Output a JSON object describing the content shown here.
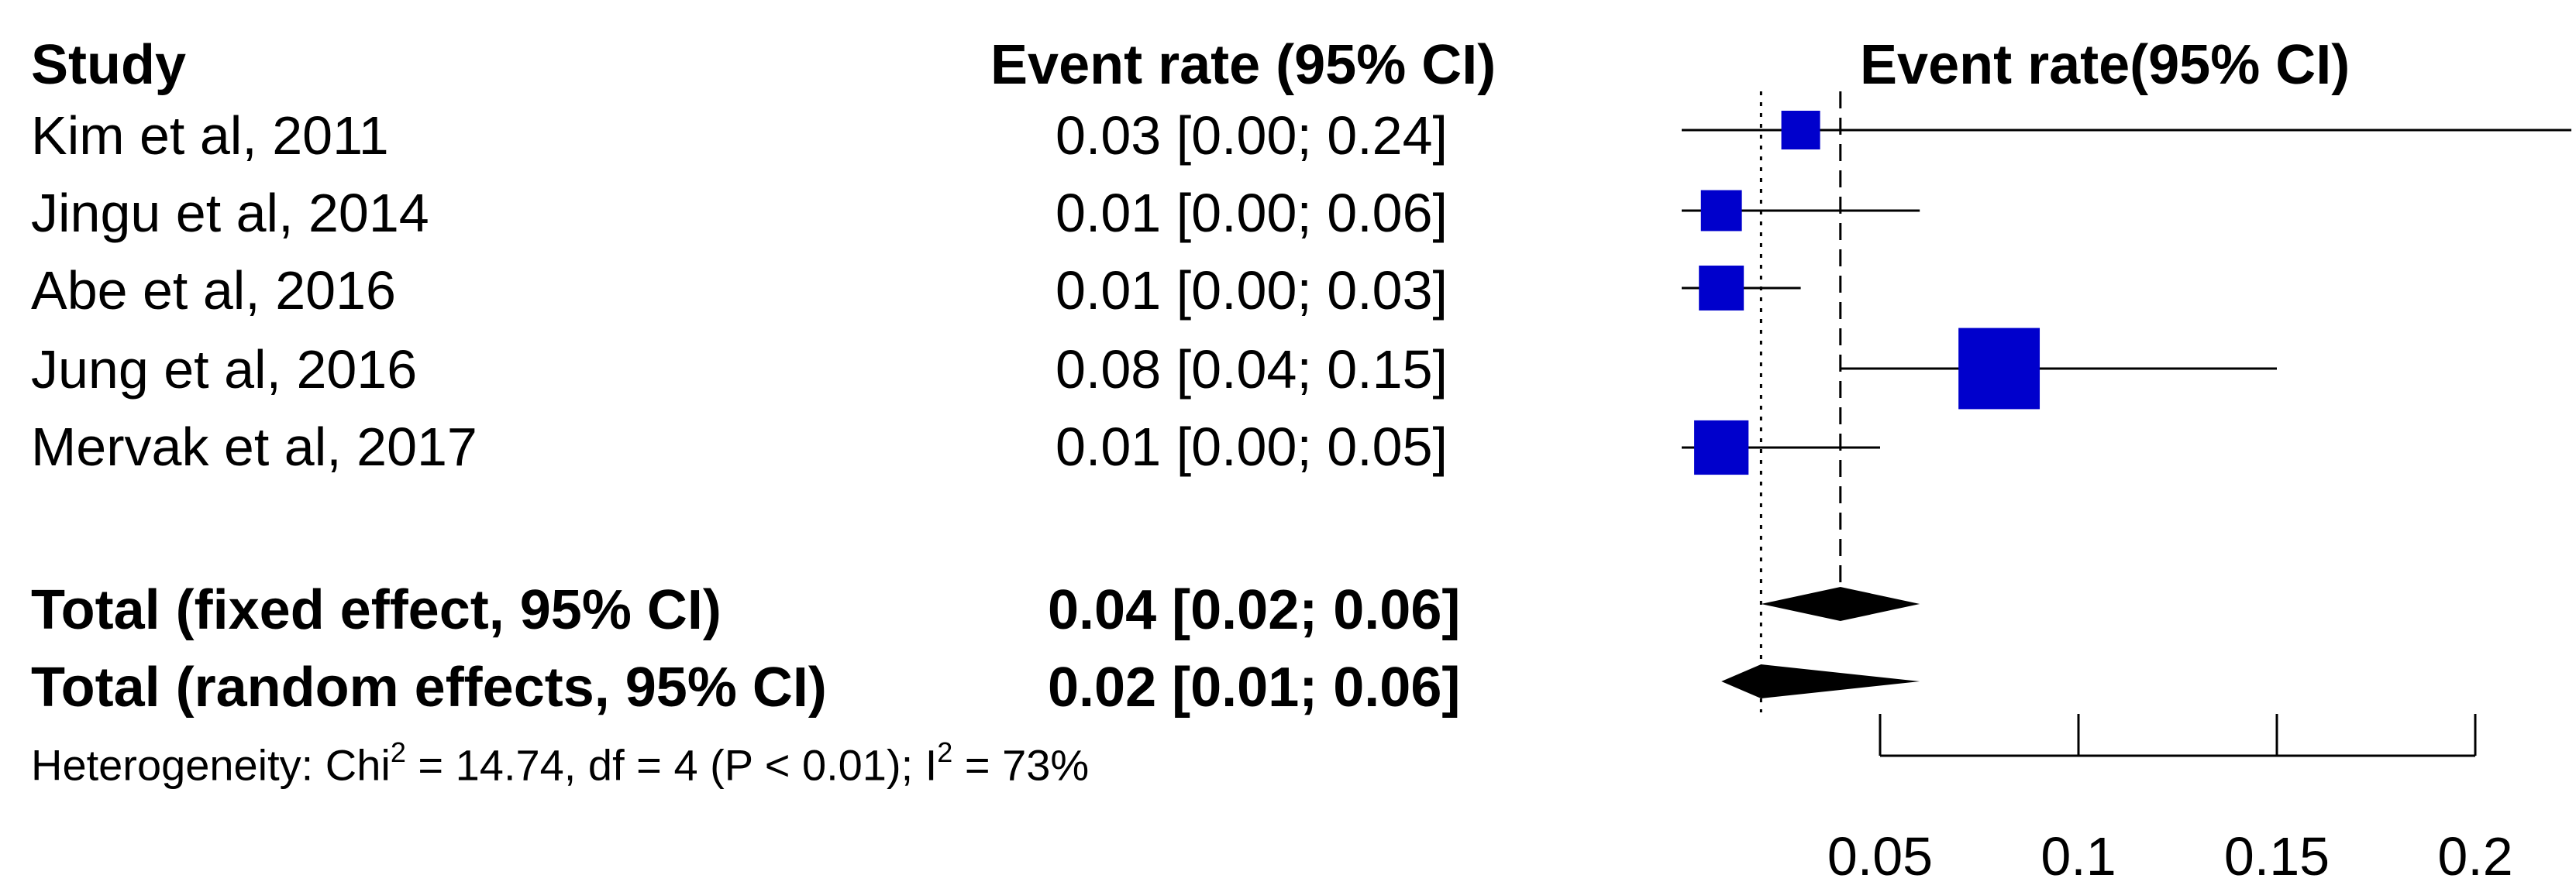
{
  "headers": {
    "study": "Study",
    "estimate": "Event rate (95% CI)",
    "plot": "Event rate(95% CI)"
  },
  "studies": [
    {
      "label": "Kim et al, 2011",
      "ci_text": "0.03 [0.00; 0.24]"
    },
    {
      "label": "Jingu et al, 2014",
      "ci_text": "0.01 [0.00; 0.06]"
    },
    {
      "label": "Abe et al, 2016",
      "ci_text": "0.01 [0.00; 0.03]"
    },
    {
      "label": "Jung et al, 2016",
      "ci_text": "0.08 [0.04; 0.15]"
    },
    {
      "label": "Mervak et al, 2017",
      "ci_text": "0.01 [0.00; 0.05]"
    }
  ],
  "totals": [
    {
      "label": "Total (fixed effect, 95% CI)",
      "ci_text": "0.04 [0.02; 0.06]"
    },
    {
      "label": "Total (random effects, 95% CI)",
      "ci_text": "0.02 [0.01; 0.06]"
    }
  ],
  "heterogeneity": {
    "part1": "Heterogeneity: Chi",
    "sup1": "2",
    "part2": " = 14.74, df = 4 (P < 0.01); I",
    "sup2": "2",
    "part3": " = 73%"
  },
  "colors": {
    "square": "#0000cc",
    "diamond": "#000000",
    "line": "#000000"
  },
  "chart_data": {
    "type": "forest",
    "title": "Event rate(95% CI)",
    "xlim": [
      0,
      0.22
    ],
    "xticks": [
      0.05,
      0.1,
      0.15,
      0.2
    ],
    "xtick_labels": [
      "0.05",
      "0.1",
      "0.15",
      "0.2"
    ],
    "studies": [
      {
        "name": "Kim et al, 2011",
        "estimate": 0.03,
        "lower": 0.0,
        "upper": 0.24,
        "weight": 1
      },
      {
        "name": "Jingu et al, 2014",
        "estimate": 0.01,
        "lower": 0.0,
        "upper": 0.06,
        "weight": 1.2
      },
      {
        "name": "Abe et al, 2016",
        "estimate": 0.01,
        "lower": 0.0,
        "upper": 0.03,
        "weight": 1.6
      },
      {
        "name": "Jung et al, 2016",
        "estimate": 0.08,
        "lower": 0.04,
        "upper": 0.15,
        "weight": 8
      },
      {
        "name": "Mervak et al, 2017",
        "estimate": 0.01,
        "lower": 0.0,
        "upper": 0.05,
        "weight": 2.8
      }
    ],
    "fixed_effect": {
      "estimate": 0.04,
      "lower": 0.02,
      "upper": 0.06
    },
    "random_effects": {
      "estimate": 0.02,
      "lower": 0.01,
      "upper": 0.06
    },
    "heterogeneity": {
      "chi2": 14.74,
      "df": 4,
      "p": "< 0.01",
      "i2_percent": 73
    }
  }
}
